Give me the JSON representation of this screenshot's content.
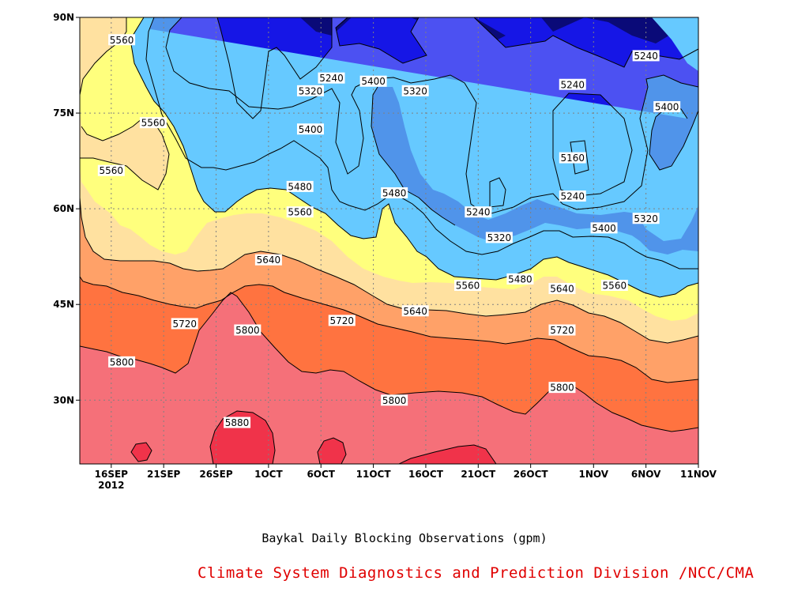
{
  "chart_data": {
    "type": "contour",
    "title": "Baykal Daily Blocking Observations (gpm)",
    "credit": "Climate System Diagnostics and Prediction Division /NCC/CMA",
    "x_ticks": [
      "16SEP",
      "21SEP",
      "26SEP",
      "1OCT",
      "6OCT",
      "11OCT",
      "16OCT",
      "21OCT",
      "26OCT",
      "1NOV",
      "6NOV",
      "11NOV"
    ],
    "x_year_label": "2012",
    "x_range": [
      "13SEP2012",
      "11NOV2012"
    ],
    "y_ticks": [
      "30N",
      "45N",
      "60N",
      "75N",
      "90N"
    ],
    "y_range": [
      20,
      90
    ],
    "grid": true,
    "contour_interval": 80,
    "colors": {
      "5880_up": "#f0334a",
      "5800_5880": "#f57079",
      "5720_5800": "#ff7340",
      "5640_5720": "#ffa168",
      "5560_5640": "#ffe1a0",
      "5480_5560": "#ffff7d",
      "5400_5480": "#66c9ff",
      "5320_5400": "#5094ea",
      "5240_5320": "#4c51f2",
      "5160_5240": "#1616e6",
      "below_5160": "#0a0a78",
      "credit_color": "#e00000"
    },
    "contour_labels": [
      {
        "value": "5560",
        "date": "17SEP",
        "lat": 86.5
      },
      {
        "value": "5560",
        "date": "20SEP",
        "lat": 73.5
      },
      {
        "value": "5560",
        "date": "16SEP",
        "lat": 66
      },
      {
        "value": "5480",
        "date": "4OCT",
        "lat": 63.5
      },
      {
        "value": "5560",
        "date": "4OCT",
        "lat": 59.5
      },
      {
        "value": "5640",
        "date": "1OCT",
        "lat": 52
      },
      {
        "value": "5720",
        "date": "23SEP",
        "lat": 42
      },
      {
        "value": "5720",
        "date": "8OCT",
        "lat": 42.5
      },
      {
        "value": "5800",
        "date": "29SEP",
        "lat": 41
      },
      {
        "value": "5800",
        "date": "17SEP",
        "lat": 36
      },
      {
        "value": "5880",
        "date": "28SEP",
        "lat": 26.5
      },
      {
        "value": "5240",
        "date": "7OCT",
        "lat": 80.5
      },
      {
        "value": "5320",
        "date": "5OCT",
        "lat": 78.5
      },
      {
        "value": "5400",
        "date": "11OCT",
        "lat": 80
      },
      {
        "value": "5320",
        "date": "15OCT",
        "lat": 78.5
      },
      {
        "value": "5400",
        "date": "5OCT",
        "lat": 72.5
      },
      {
        "value": "5480",
        "date": "13OCT",
        "lat": 62.5
      },
      {
        "value": "5240",
        "date": "21OCT",
        "lat": 59.5
      },
      {
        "value": "5320",
        "date": "23OCT",
        "lat": 55.5
      },
      {
        "value": "5480",
        "date": "25OCT",
        "lat": 49
      },
      {
        "value": "5560",
        "date": "20OCT",
        "lat": 48
      },
      {
        "value": "5640",
        "date": "15OCT",
        "lat": 44
      },
      {
        "value": "5800",
        "date": "13OCT",
        "lat": 30
      },
      {
        "value": "5240",
        "date": "6NOV",
        "lat": 84
      },
      {
        "value": "5240",
        "date": "30OCT",
        "lat": 79.5
      },
      {
        "value": "5400",
        "date": "8NOV",
        "lat": 76
      },
      {
        "value": "5160",
        "date": "30OCT",
        "lat": 68
      },
      {
        "value": "5240",
        "date": "30OCT",
        "lat": 62
      },
      {
        "value": "5400",
        "date": "2NOV",
        "lat": 57
      },
      {
        "value": "5320",
        "date": "6NOV",
        "lat": 58.5
      },
      {
        "value": "5640",
        "date": "29OCT",
        "lat": 47.5
      },
      {
        "value": "5560",
        "date": "3NOV",
        "lat": 48
      },
      {
        "value": "5720",
        "date": "29OCT",
        "lat": 41
      },
      {
        "value": "5800",
        "date": "29OCT",
        "lat": 32
      }
    ]
  }
}
